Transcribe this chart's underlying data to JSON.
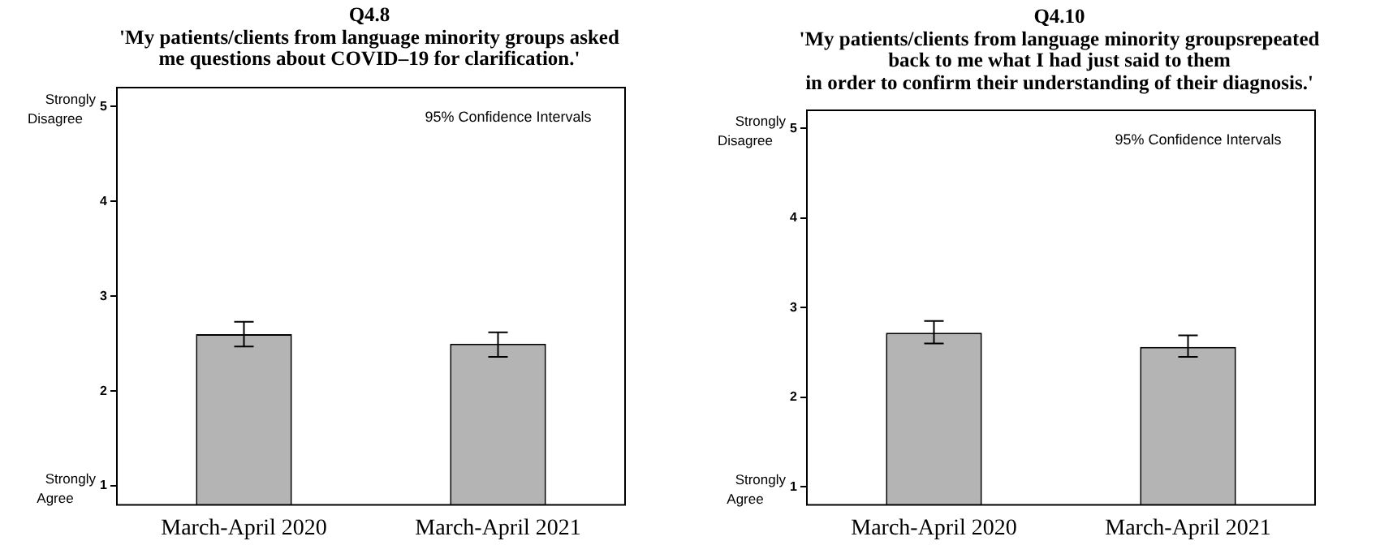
{
  "chart_data": [
    {
      "type": "bar",
      "title": "Q4.8",
      "subtitle": "'My patients/clients from language minority groups asked\nme questions about COVID–19 for clarification.'",
      "categories": [
        "March-April 2020",
        "March-April 2021"
      ],
      "values": [
        2.6,
        2.5
      ],
      "errors": [
        [
          2.47,
          2.73
        ],
        [
          2.36,
          2.62
        ]
      ],
      "color": "#b4b4b4",
      "ylim": [
        0.8,
        5.2
      ],
      "yticks": [
        1,
        2,
        3,
        4,
        5
      ],
      "grid": false,
      "legend": false,
      "annotations": [
        "95% Confidence Intervals",
        "Strongly Disagree",
        "Strongly Agree"
      ]
    },
    {
      "type": "bar",
      "title": "Q4.10",
      "subtitle": "'My patients/clients from language minority groupsrepeated\nback to me what I had just said to them\nin order to confirm their understanding of their diagnosis.'",
      "categories": [
        "March-April 2020",
        "March-April 2021"
      ],
      "values": [
        2.72,
        2.56
      ],
      "errors": [
        [
          2.6,
          2.85
        ],
        [
          2.45,
          2.69
        ]
      ],
      "color": "#b4b4b4",
      "ylim": [
        0.8,
        5.2
      ],
      "yticks": [
        1,
        2,
        3,
        4,
        5
      ],
      "grid": false,
      "legend": false,
      "annotations": [
        "95% Confidence Intervals",
        "Strongly Disagree",
        "Strongly Agree"
      ]
    }
  ]
}
